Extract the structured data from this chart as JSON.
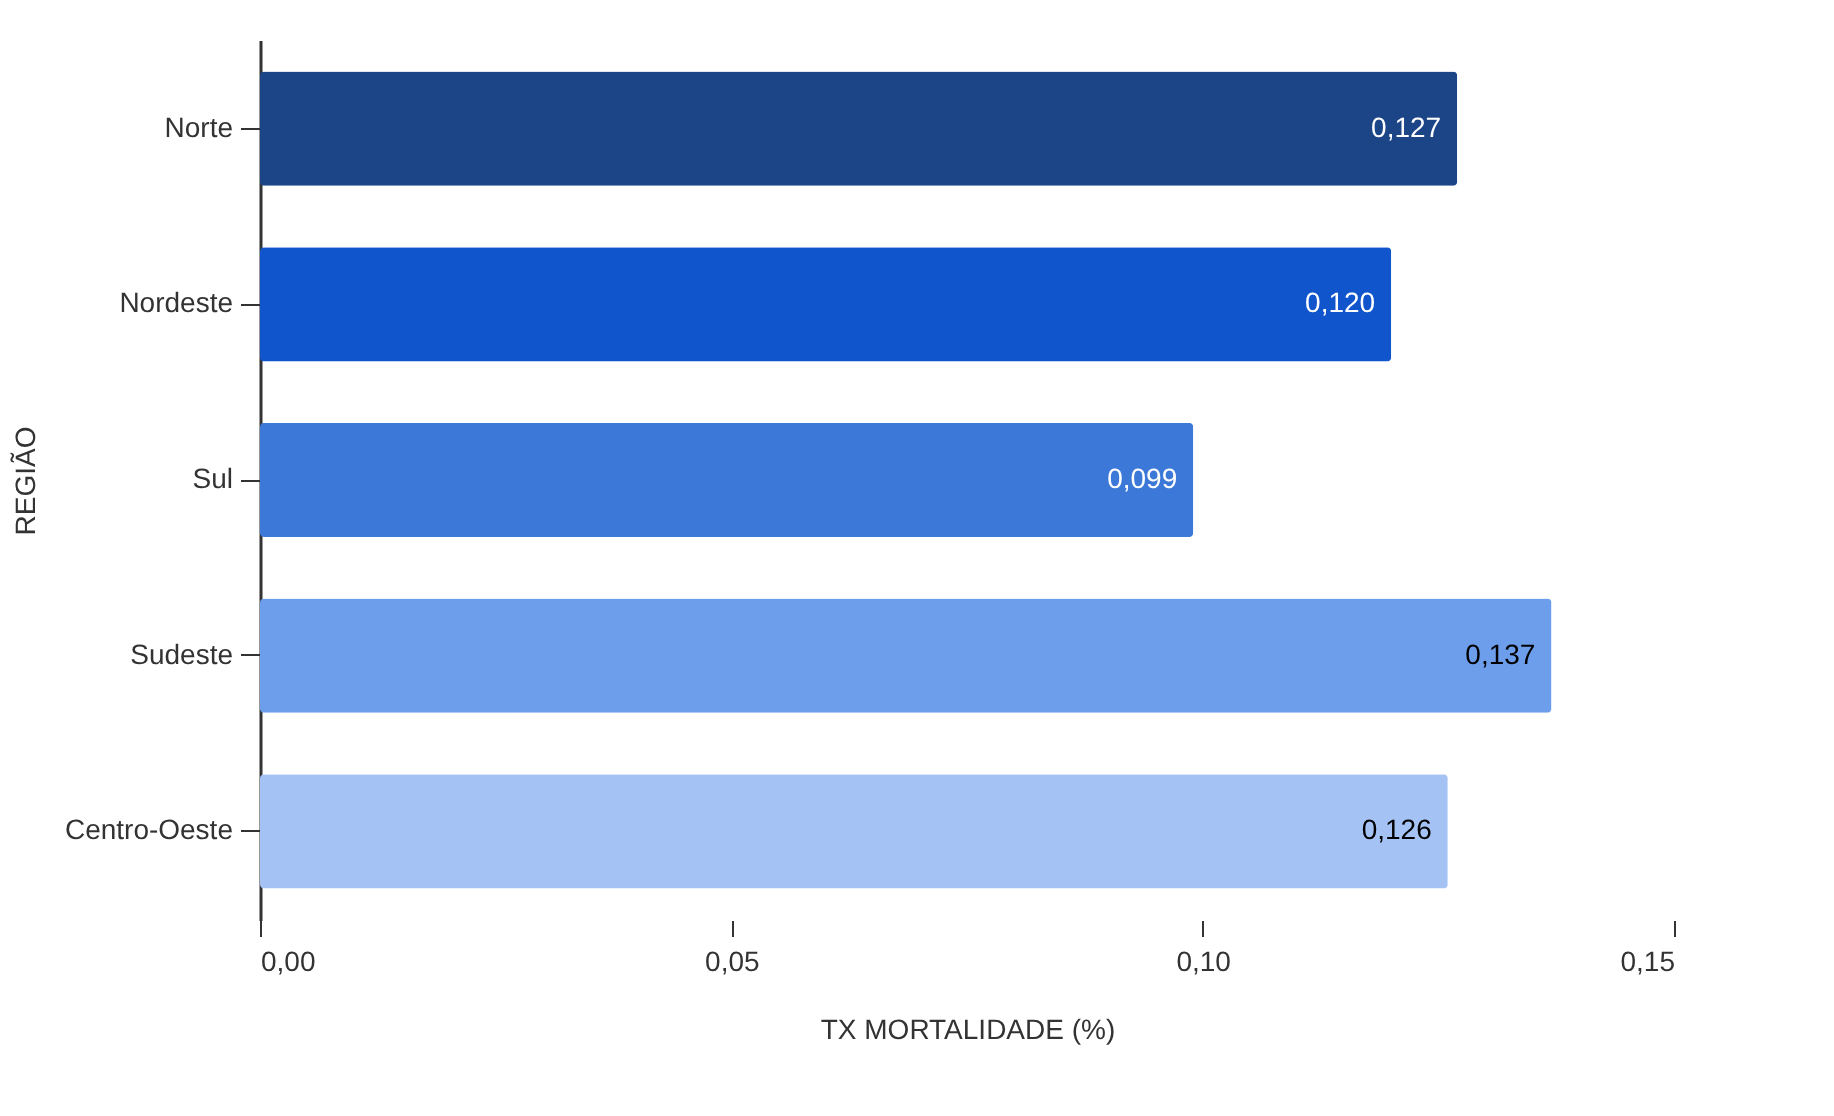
{
  "chart_data": {
    "type": "bar",
    "orientation": "horizontal",
    "xlabel": "TX MORTALIDADE (%)",
    "ylabel": "REGIÃO",
    "categories": [
      "Norte",
      "Nordeste",
      "Sul",
      "Sudeste",
      "Centro-Oeste"
    ],
    "values": [
      0.127,
      0.12,
      0.099,
      0.137,
      0.126
    ],
    "colors": [
      "#1c4587",
      "#1155cc",
      "#3c78d8",
      "#6d9eeb",
      "#a4c2f4"
    ],
    "value_labels": [
      "0,127",
      "0,120",
      "0,099",
      "0,137",
      "0,126"
    ],
    "xlim": [
      0,
      0.15
    ],
    "xticks": [
      {
        "value": 0,
        "label": "0,00"
      },
      {
        "value": 0.05,
        "label": "0,05"
      },
      {
        "value": 0.1,
        "label": "0,10"
      },
      {
        "value": 0.15,
        "label": "0,15"
      }
    ],
    "grid": false
  }
}
